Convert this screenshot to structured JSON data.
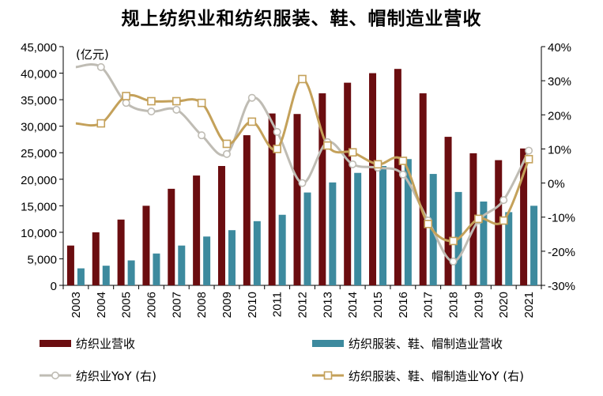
{
  "title": "规上纺织业和纺织服装、鞋、帽制造业营收",
  "chart_data": {
    "type": "bar+line",
    "title": "规上纺织业和纺织服装、鞋、帽制造业营收",
    "unit_label": "(亿元)",
    "categories": [
      "2003",
      "2004",
      "2005",
      "2006",
      "2007",
      "2008",
      "2009",
      "2010",
      "2011",
      "2012",
      "2013",
      "2014",
      "2015",
      "2016",
      "2017",
      "2018",
      "2019",
      "2020",
      "2021"
    ],
    "left_axis": {
      "ylim": [
        0,
        45000
      ],
      "ticks": [
        "0",
        "5,000",
        "10,000",
        "15,000",
        "20,000",
        "25,000",
        "30,000",
        "35,000",
        "40,000",
        "45,000"
      ]
    },
    "right_axis": {
      "ylim": [
        -30,
        40
      ],
      "ticks": [
        "-30%",
        "-20%",
        "-10%",
        "0%",
        "10%",
        "20%",
        "30%",
        "40%"
      ]
    },
    "series": [
      {
        "name": "纺织业营收",
        "kind": "bar",
        "axis": "left",
        "color": "#6b0d10",
        "values": [
          7500,
          10000,
          12400,
          15000,
          18200,
          20700,
          22500,
          28300,
          32400,
          32300,
          36200,
          38200,
          40000,
          40800,
          36200,
          28000,
          24900,
          23600,
          25800
        ]
      },
      {
        "name": "纺织服装、鞋、帽制造业营收",
        "kind": "bar",
        "axis": "left",
        "color": "#3d8a9e",
        "values": [
          3200,
          3700,
          4700,
          6000,
          7500,
          9200,
          10400,
          12100,
          13300,
          17500,
          19400,
          21200,
          22500,
          23800,
          21000,
          17600,
          15800,
          13800,
          15000
        ]
      },
      {
        "name": "纺织业YoY (右)",
        "kind": "line",
        "axis": "right",
        "color": "#bfbcb4",
        "marker": "circle",
        "values": [
          34,
          34,
          23.5,
          21,
          21.5,
          14,
          8.5,
          25,
          15,
          0,
          12,
          5.5,
          4.5,
          2.5,
          -11,
          -23,
          -11,
          -5,
          9.5
        ]
      },
      {
        "name": "纺织服装、鞋、帽制造业YoY (右)",
        "kind": "line",
        "axis": "right",
        "color": "#c4a15a",
        "marker": "square",
        "values": [
          17.5,
          17.5,
          25.5,
          24,
          24,
          23.5,
          11.5,
          18,
          10,
          30.5,
          11,
          9,
          5.5,
          6.5,
          -12,
          -17,
          -10.5,
          -11,
          7
        ]
      }
    ],
    "legend_position": "bottom"
  }
}
